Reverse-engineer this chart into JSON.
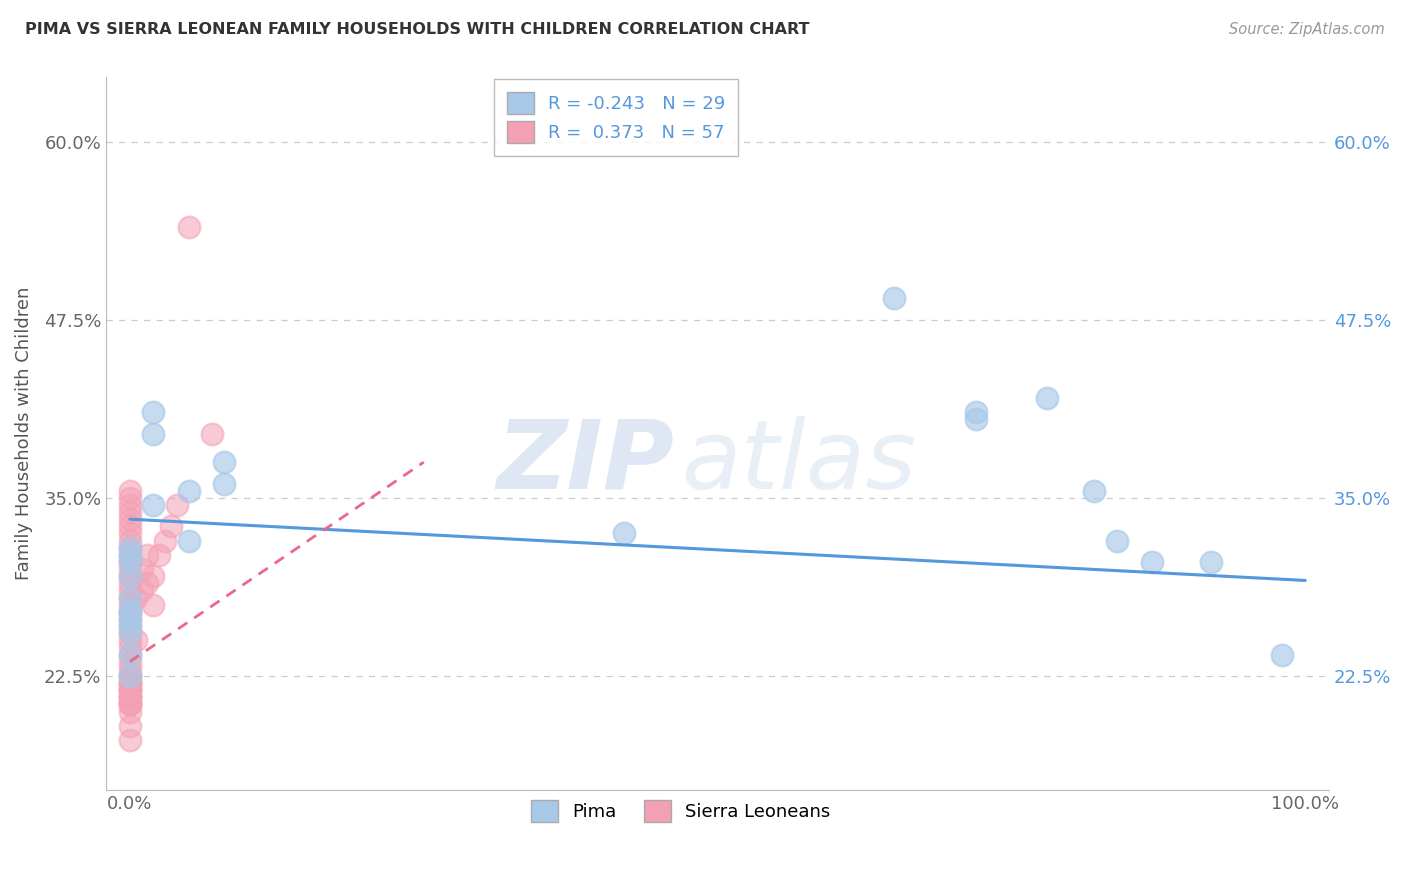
{
  "title": "PIMA VS SIERRA LEONEAN FAMILY HOUSEHOLDS WITH CHILDREN CORRELATION CHART",
  "source_text": "Source: ZipAtlas.com",
  "ylabel": "Family Households with Children",
  "xlim": [
    -0.02,
    1.02
  ],
  "ylim": [
    0.145,
    0.645
  ],
  "ytick_labels": [
    "22.5%",
    "35.0%",
    "47.5%",
    "60.0%"
  ],
  "ytick_values": [
    0.225,
    0.35,
    0.475,
    0.6
  ],
  "xtick_labels": [
    "0.0%",
    "100.0%"
  ],
  "xtick_values": [
    0.0,
    1.0
  ],
  "legend_r_pima": "-0.243",
  "legend_n_pima": "29",
  "legend_r_sierra": "0.373",
  "legend_n_sierra": "57",
  "pima_color": "#a8c8e8",
  "sierra_color": "#f4a0b4",
  "pima_line_color": "#5599dd",
  "sierra_line_color": "#ee6688",
  "grid_color": "#cccccc",
  "background_color": "#ffffff",
  "watermark_zip_color": "#c8d8ec",
  "watermark_atlas_color": "#c8d8ec",
  "pima_x": [
    0.0,
    0.0,
    0.0,
    0.0,
    0.0,
    0.0,
    0.02,
    0.02,
    0.05,
    0.08,
    0.42,
    0.65,
    0.72,
    0.72,
    0.78,
    0.82,
    0.84,
    0.87,
    0.92,
    0.98,
    0.0,
    0.0,
    0.0,
    0.0,
    0.0,
    0.0,
    0.02,
    0.05,
    0.08
  ],
  "pima_y": [
    0.27,
    0.28,
    0.295,
    0.305,
    0.31,
    0.315,
    0.395,
    0.41,
    0.355,
    0.375,
    0.325,
    0.49,
    0.41,
    0.405,
    0.42,
    0.355,
    0.32,
    0.305,
    0.305,
    0.24,
    0.225,
    0.24,
    0.255,
    0.26,
    0.265,
    0.27,
    0.345,
    0.32,
    0.36
  ],
  "sierra_x": [
    0.0,
    0.0,
    0.0,
    0.0,
    0.0,
    0.0,
    0.0,
    0.0,
    0.0,
    0.0,
    0.0,
    0.0,
    0.0,
    0.0,
    0.0,
    0.0,
    0.0,
    0.0,
    0.0,
    0.0,
    0.0,
    0.0,
    0.0,
    0.0,
    0.0,
    0.0,
    0.0,
    0.0,
    0.0,
    0.0,
    0.0,
    0.0,
    0.0,
    0.0,
    0.0,
    0.0,
    0.0,
    0.0,
    0.0,
    0.0,
    0.0,
    0.0,
    0.0,
    0.005,
    0.005,
    0.01,
    0.01,
    0.015,
    0.015,
    0.02,
    0.02,
    0.025,
    0.03,
    0.035,
    0.04,
    0.05,
    0.07
  ],
  "sierra_y": [
    0.215,
    0.22,
    0.225,
    0.225,
    0.23,
    0.235,
    0.24,
    0.245,
    0.25,
    0.255,
    0.26,
    0.265,
    0.27,
    0.275,
    0.28,
    0.285,
    0.29,
    0.295,
    0.3,
    0.305,
    0.31,
    0.315,
    0.32,
    0.325,
    0.33,
    0.335,
    0.34,
    0.345,
    0.35,
    0.355,
    0.18,
    0.19,
    0.2,
    0.205,
    0.21,
    0.215,
    0.22,
    0.205,
    0.21,
    0.215,
    0.22,
    0.205,
    0.21,
    0.25,
    0.28,
    0.285,
    0.3,
    0.29,
    0.31,
    0.275,
    0.295,
    0.31,
    0.32,
    0.33,
    0.345,
    0.54,
    0.395
  ],
  "pima_line_x0": 0.0,
  "pima_line_x1": 1.0,
  "pima_line_y0": 0.335,
  "pima_line_y1": 0.292,
  "sierra_line_x0": 0.0,
  "sierra_line_x1": 0.25,
  "sierra_line_y0": 0.235,
  "sierra_line_y1": 0.375
}
